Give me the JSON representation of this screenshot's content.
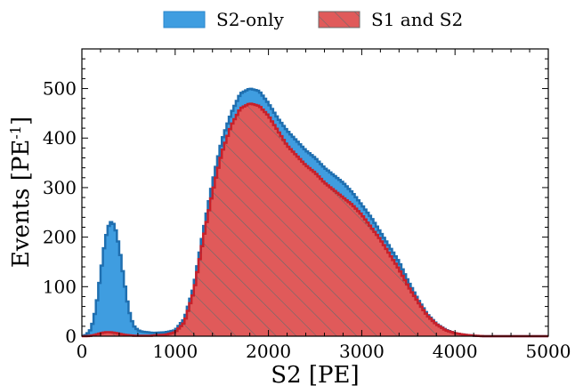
{
  "chart_data": {
    "type": "area",
    "xlabel": "S2 [PE]",
    "ylabel": "Events [PE",
    "ylabel_sup": "-1",
    "ylabel_close": "]",
    "xlim": [
      0,
      5000
    ],
    "ylim": [
      0,
      580
    ],
    "xticks": [
      0,
      1000,
      2000,
      3000,
      4000,
      5000
    ],
    "yticks": [
      0,
      100,
      200,
      300,
      400,
      500
    ],
    "grid": false,
    "legend_position": "top-center, outside plot",
    "series": [
      {
        "name": "S2-only",
        "color": "#3f9de0",
        "edge_color": "#1f6fb0",
        "x": [
          0,
          50,
          100,
          150,
          200,
          250,
          300,
          350,
          400,
          450,
          500,
          550,
          600,
          650,
          700,
          750,
          800,
          900,
          1000,
          1100,
          1200,
          1300,
          1400,
          1500,
          1600,
          1700,
          1800,
          1900,
          2000,
          2100,
          2200,
          2300,
          2400,
          2500,
          2600,
          2700,
          2800,
          2900,
          3000,
          3100,
          3200,
          3300,
          3400,
          3500,
          3600,
          3700,
          3800,
          3900,
          4000,
          4100,
          4200,
          4300,
          4400,
          4600,
          5000
        ],
        "values": [
          0,
          3,
          15,
          55,
          125,
          195,
          232,
          225,
          180,
          115,
          55,
          22,
          12,
          9,
          8,
          7,
          7,
          8,
          12,
          35,
          100,
          210,
          310,
          395,
          450,
          490,
          500,
          495,
          470,
          440,
          415,
          395,
          375,
          360,
          340,
          325,
          310,
          290,
          265,
          240,
          210,
          180,
          150,
          110,
          75,
          45,
          25,
          13,
          6,
          3,
          1,
          0,
          0,
          0,
          0
        ]
      },
      {
        "name": "S1 and S2",
        "color": "#e05a5a",
        "edge_color": "#c8202a",
        "hatch": "diagonal",
        "x": [
          0,
          50,
          100,
          150,
          200,
          250,
          300,
          350,
          400,
          450,
          500,
          550,
          600,
          650,
          700,
          750,
          800,
          900,
          1000,
          1100,
          1200,
          1300,
          1400,
          1500,
          1600,
          1700,
          1800,
          1900,
          2000,
          2100,
          2200,
          2300,
          2400,
          2500,
          2600,
          2700,
          2800,
          2900,
          3000,
          3100,
          3200,
          3300,
          3400,
          3500,
          3600,
          3700,
          3800,
          3900,
          4000,
          4100,
          4200,
          4300,
          4400,
          4600,
          5000
        ],
        "values": [
          0,
          0,
          1,
          3,
          6,
          8,
          8,
          7,
          5,
          3,
          2,
          1,
          1,
          1,
          1,
          1,
          2,
          3,
          8,
          28,
          90,
          195,
          290,
          370,
          425,
          460,
          470,
          465,
          445,
          415,
          385,
          365,
          345,
          330,
          310,
          295,
          280,
          265,
          245,
          220,
          195,
          165,
          135,
          100,
          70,
          42,
          24,
          12,
          6,
          3,
          1,
          0,
          0,
          0,
          0
        ]
      }
    ]
  }
}
